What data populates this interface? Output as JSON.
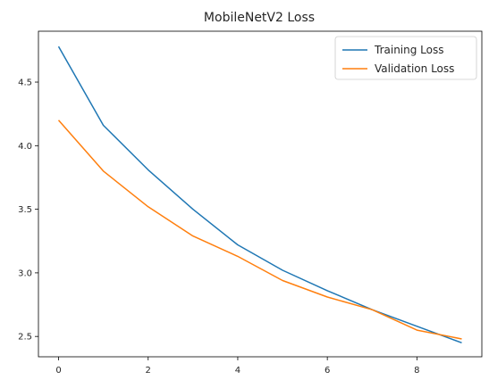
{
  "chart_data": {
    "type": "line",
    "title": "MobileNetV2 Loss",
    "xlabel": "",
    "ylabel": "",
    "x": [
      0,
      1,
      2,
      3,
      4,
      5,
      6,
      7,
      8,
      9
    ],
    "xlim": [
      -0.45,
      9.45
    ],
    "ylim": [
      2.34,
      4.9
    ],
    "xticks": [
      0,
      2,
      4,
      6,
      8
    ],
    "xtick_labels": [
      "0",
      "2",
      "4",
      "6",
      "8"
    ],
    "yticks": [
      2.5,
      3.0,
      3.5,
      4.0,
      4.5
    ],
    "ytick_labels": [
      "2.5",
      "3.0",
      "3.5",
      "4.0",
      "4.5"
    ],
    "grid": false,
    "legend_position": "top-right",
    "series": [
      {
        "name": "Training Loss",
        "color": "#1f77b4",
        "values": [
          4.78,
          4.16,
          3.81,
          3.5,
          3.22,
          3.02,
          2.86,
          2.71,
          2.58,
          2.45
        ]
      },
      {
        "name": "Validation Loss",
        "color": "#ff7f0e",
        "values": [
          4.2,
          3.8,
          3.52,
          3.29,
          3.13,
          2.94,
          2.81,
          2.71,
          2.55,
          2.48
        ]
      }
    ]
  }
}
